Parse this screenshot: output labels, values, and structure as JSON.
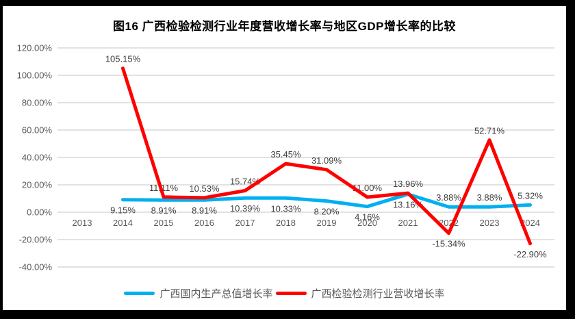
{
  "title": "图16 广西检验检测行业年度营收增长率与地区GDP增长率的比较",
  "chart_data": {
    "type": "line",
    "title": "图16 广西检验检测行业年度营收增长率与地区GDP增长率的比较",
    "categories": [
      "2013",
      "2014",
      "2015",
      "2016",
      "2017",
      "2018",
      "2019",
      "2020",
      "2021",
      "2022",
      "2023",
      "2024"
    ],
    "series": [
      {
        "name": "广西国内生产总值增长率",
        "color": "#00B0F0",
        "values": [
          null,
          9.15,
          8.91,
          8.91,
          10.39,
          10.33,
          8.2,
          4.16,
          13.16,
          3.88,
          3.88,
          5.32
        ],
        "labels": [
          null,
          "9.15%",
          "8.91%",
          "8.91%",
          "10.39%",
          "10.33%",
          "8.20%",
          "4.16%",
          "13.16%",
          "3.88%",
          "3.88%",
          "5.32%"
        ],
        "label_pos": [
          null,
          "below",
          "below",
          "below",
          "below",
          "below",
          "below",
          "below",
          "below",
          "above",
          "above",
          "above"
        ]
      },
      {
        "name": "广西检验检测行业营收增长率",
        "color": "#FF0000",
        "values": [
          null,
          105.15,
          11.11,
          10.53,
          15.74,
          35.45,
          31.09,
          11.0,
          13.96,
          -15.34,
          52.71,
          -22.9
        ],
        "labels": [
          null,
          "105.15%",
          "11.11%",
          "10.53%",
          "15.74%",
          "35.45%",
          "31.09%",
          "11.00%",
          "13.96%",
          "-15.34%",
          "52.71%",
          "-22.90%"
        ],
        "label_pos": [
          null,
          "above",
          "above",
          "above",
          "above",
          "above",
          "above",
          "above",
          "above",
          "below",
          "above",
          "below"
        ]
      }
    ],
    "ylim": [
      -40,
      120
    ],
    "yticks": [
      {
        "value": 120,
        "label": "120.00%"
      },
      {
        "value": 100,
        "label": "100.00%"
      },
      {
        "value": 80,
        "label": "80.00%"
      },
      {
        "value": 60,
        "label": "60.00%"
      },
      {
        "value": 40,
        "label": "40.00%"
      },
      {
        "value": 20,
        "label": "20.00%"
      },
      {
        "value": 0,
        "label": "0.00%"
      },
      {
        "value": -20,
        "label": "-20.00%"
      },
      {
        "value": -40,
        "label": "-40.00%"
      }
    ],
    "grid": true,
    "legend_position": "bottom",
    "colors": {
      "gridline": "#D9D9D9",
      "axis_text": "#595959",
      "label_text": "#404040",
      "title_text": "#000000",
      "canvas_background": "#FFFFFF",
      "frame_background": "#000000"
    }
  }
}
